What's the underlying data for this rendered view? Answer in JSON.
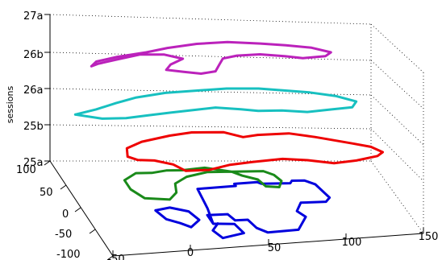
{
  "chart_data": {
    "type": "line3d",
    "title": "",
    "zlabel": "sessions",
    "x_ticks": [
      "-50",
      "0",
      "50",
      "100",
      "150"
    ],
    "y_ticks": [
      "-100",
      "-50",
      "0",
      "50",
      "100"
    ],
    "z_ticks": [
      "25a",
      "25b",
      "26a",
      "26b",
      "27a"
    ],
    "xlim": [
      -50,
      150
    ],
    "ylim": [
      -100,
      100
    ],
    "grid": true,
    "series": [
      {
        "color": "#0000dd",
        "z_level": "25a",
        "points": [
          [
            25,
            -45
          ],
          [
            28,
            -10
          ],
          [
            30,
            35
          ],
          [
            55,
            40
          ],
          [
            55,
            45
          ],
          [
            70,
            48
          ],
          [
            72,
            44
          ],
          [
            90,
            44
          ],
          [
            92,
            50
          ],
          [
            100,
            50
          ],
          [
            105,
            40
          ],
          [
            108,
            5
          ],
          [
            104,
            -5
          ],
          [
            88,
            -5
          ],
          [
            82,
            -25
          ],
          [
            85,
            -40
          ],
          [
            75,
            -70
          ],
          [
            55,
            -72
          ],
          [
            50,
            -60
          ],
          [
            48,
            -40
          ],
          [
            40,
            -40
          ],
          [
            38,
            -25
          ],
          [
            25,
            -25
          ],
          [
            25,
            -45
          ],
          [
            38,
            -48
          ],
          [
            40,
            -70
          ],
          [
            25,
            -78
          ],
          [
            22,
            -60
          ],
          [
            28,
            -45
          ]
        ]
      },
      {
        "color": "#0000dd",
        "z_level": "25a",
        "points": [
          [
            -5,
            -10
          ],
          [
            5,
            -5
          ],
          [
            15,
            -15
          ],
          [
            18,
            -35
          ],
          [
            10,
            -50
          ],
          [
            5,
            -40
          ],
          [
            -2,
            -30
          ],
          [
            -5,
            -10
          ]
        ]
      },
      {
        "color": "#1a8a1a",
        "z_level": "25a+",
        "points": [
          [
            -15,
            40
          ],
          [
            -15,
            20
          ],
          [
            -10,
            0
          ],
          [
            5,
            -5
          ],
          [
            12,
            10
          ],
          [
            15,
            30
          ],
          [
            25,
            45
          ],
          [
            40,
            55
          ],
          [
            55,
            55
          ],
          [
            75,
            55
          ],
          [
            80,
            45
          ],
          [
            82,
            30
          ],
          [
            78,
            15
          ],
          [
            70,
            18
          ],
          [
            68,
            35
          ],
          [
            60,
            45
          ],
          [
            55,
            55
          ],
          [
            40,
            65
          ],
          [
            25,
            60
          ],
          [
            15,
            60
          ],
          [
            5,
            55
          ],
          [
            -5,
            55
          ],
          [
            -15,
            40
          ]
        ]
      },
      {
        "color": "#ee0000",
        "z_level": "25b",
        "points": [
          [
            -15,
            30
          ],
          [
            -12,
            48
          ],
          [
            0,
            62
          ],
          [
            20,
            75
          ],
          [
            35,
            82
          ],
          [
            55,
            82
          ],
          [
            65,
            70
          ],
          [
            75,
            75
          ],
          [
            95,
            78
          ],
          [
            110,
            68
          ],
          [
            130,
            50
          ],
          [
            140,
            40
          ],
          [
            145,
            25
          ],
          [
            140,
            15
          ],
          [
            125,
            5
          ],
          [
            110,
            0
          ],
          [
            95,
            10
          ],
          [
            80,
            15
          ],
          [
            60,
            10
          ],
          [
            45,
            5
          ],
          [
            30,
            -5
          ],
          [
            15,
            -5
          ],
          [
            10,
            10
          ],
          [
            0,
            20
          ],
          [
            -10,
            22
          ],
          [
            -15,
            30
          ]
        ]
      },
      {
        "color": "#17c0c0",
        "z_level": "26a",
        "points": [
          [
            -45,
            45
          ],
          [
            -30,
            55
          ],
          [
            -15,
            68
          ],
          [
            0,
            80
          ],
          [
            20,
            90
          ],
          [
            40,
            95
          ],
          [
            60,
            100
          ],
          [
            80,
            100
          ],
          [
            95,
            95
          ],
          [
            110,
            90
          ],
          [
            125,
            80
          ],
          [
            135,
            65
          ],
          [
            130,
            50
          ],
          [
            115,
            45
          ],
          [
            100,
            40
          ],
          [
            85,
            45
          ],
          [
            70,
            45
          ],
          [
            60,
            50
          ],
          [
            45,
            55
          ],
          [
            30,
            50
          ],
          [
            15,
            45
          ],
          [
            0,
            40
          ],
          [
            -15,
            35
          ],
          [
            -30,
            35
          ],
          [
            -45,
            45
          ]
        ]
      },
      {
        "color": "#bb22bb",
        "z_level": "26b",
        "points": [
          [
            -30,
            70
          ],
          [
            -25,
            80
          ],
          [
            -10,
            90
          ],
          [
            10,
            100
          ],
          [
            25,
            110
          ],
          [
            45,
            120
          ],
          [
            65,
            125
          ],
          [
            85,
            122
          ],
          [
            100,
            118
          ],
          [
            115,
            112
          ],
          [
            125,
            100
          ],
          [
            120,
            90
          ],
          [
            105,
            85
          ],
          [
            95,
            90
          ],
          [
            80,
            95
          ],
          [
            65,
            92
          ],
          [
            55,
            85
          ],
          [
            50,
            70
          ],
          [
            45,
            55
          ],
          [
            35,
            50
          ],
          [
            25,
            55
          ],
          [
            15,
            60
          ],
          [
            20,
            72
          ],
          [
            30,
            85
          ],
          [
            20,
            95
          ],
          [
            5,
            95
          ],
          [
            -10,
            85
          ],
          [
            -25,
            75
          ],
          [
            -30,
            70
          ]
        ]
      }
    ]
  }
}
